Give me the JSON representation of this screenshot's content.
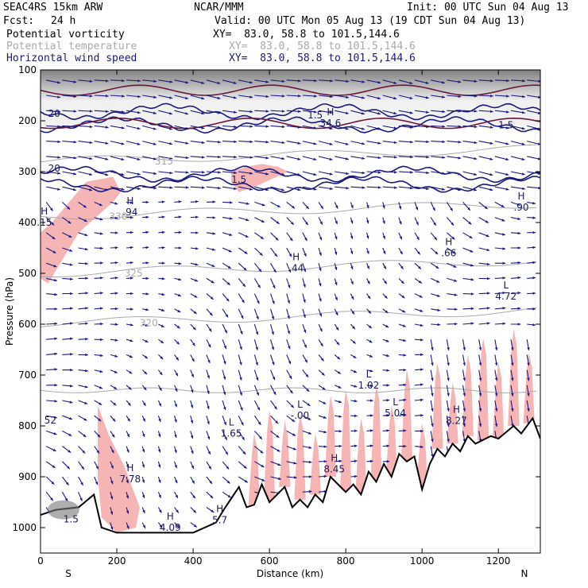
{
  "header": {
    "model": "SEAC4RS 15km ARW",
    "org": "NCAR/MMM",
    "init": "Init: 00 UTC Sun 04 Aug 13",
    "fcst_label": "Fcst:",
    "fcst_value": "24 h",
    "valid": "Valid: 00 UTC Mon 05 Aug 13 (19 CDT Sun 04 Aug 13)",
    "fields": [
      {
        "name": "Potential vorticity",
        "xy": "XY=  83.0, 58.8 to 101.5,144.6",
        "color": "#000000"
      },
      {
        "name": "Potential temperature",
        "xy": "XY=  83.0, 58.8 to 101.5,144.6",
        "color": "#aaaaaa"
      },
      {
        "name": "Horizontal wind speed",
        "xy": "XY=  83.0, 58.8 to 101.5,144.6",
        "color": "#1a1a7a"
      }
    ]
  },
  "chart_data": {
    "type": "cross-section",
    "xlabel": "Distance (km)",
    "ylabel": "Pressure (hPa)",
    "xlim": [
      0,
      1310
    ],
    "ylim": [
      1050,
      100
    ],
    "x_ticks": [
      "0",
      "200",
      "400",
      "600",
      "800",
      "1000",
      "1200"
    ],
    "y_ticks": [
      "100",
      "200",
      "300",
      "400",
      "500",
      "600",
      "700",
      "800",
      "900",
      "1000"
    ],
    "x_end_labels": {
      "left": "S",
      "right": "N"
    },
    "terrain_profile": [
      [
        0,
        975
      ],
      [
        40,
        965
      ],
      [
        100,
        960
      ],
      [
        140,
        935
      ],
      [
        160,
        1000
      ],
      [
        200,
        1010
      ],
      [
        300,
        1010
      ],
      [
        400,
        1010
      ],
      [
        460,
        990
      ],
      [
        480,
        965
      ],
      [
        520,
        920
      ],
      [
        540,
        960
      ],
      [
        560,
        955
      ],
      [
        580,
        915
      ],
      [
        600,
        950
      ],
      [
        640,
        920
      ],
      [
        660,
        960
      ],
      [
        680,
        945
      ],
      [
        700,
        960
      ],
      [
        720,
        935
      ],
      [
        740,
        950
      ],
      [
        760,
        900
      ],
      [
        800,
        930
      ],
      [
        820,
        915
      ],
      [
        840,
        935
      ],
      [
        860,
        890
      ],
      [
        880,
        910
      ],
      [
        900,
        875
      ],
      [
        920,
        900
      ],
      [
        940,
        855
      ],
      [
        960,
        870
      ],
      [
        980,
        860
      ],
      [
        1000,
        925
      ],
      [
        1020,
        875
      ],
      [
        1040,
        845
      ],
      [
        1060,
        860
      ],
      [
        1080,
        835
      ],
      [
        1100,
        850
      ],
      [
        1120,
        820
      ],
      [
        1140,
        835
      ],
      [
        1180,
        820
      ],
      [
        1200,
        825
      ],
      [
        1240,
        800
      ],
      [
        1260,
        815
      ],
      [
        1290,
        785
      ],
      [
        1310,
        825
      ]
    ],
    "theta_contours": [
      {
        "label": "330",
        "pressure_hpa": 388
      },
      {
        "label": "325",
        "pressure_hpa": 500
      },
      {
        "label": "320",
        "pressure_hpa": 598
      },
      {
        "label": "315",
        "pressure_hpa": 280
      }
    ],
    "wind_speed_contours": [
      {
        "label": "30",
        "pressure_hpa": 182
      },
      {
        "label": "25",
        "pressure_hpa": 208
      },
      {
        "label": "20",
        "pressure_hpa": 305
      },
      {
        "label": "15",
        "pressure_hpa": 325
      }
    ],
    "extrema_labels": [
      {
        "type": "H",
        "value": ".94",
        "x_km": 235,
        "p_hpa": 380
      },
      {
        "type": "H",
        "value": ".15",
        "x_km": 10,
        "p_hpa": 400
      },
      {
        "type": "H",
        "value": ".44",
        "x_km": 670,
        "p_hpa": 490
      },
      {
        "type": "H",
        "value": ".66",
        "x_km": 1070,
        "p_hpa": 460
      },
      {
        "type": "H",
        "value": ".90",
        "x_km": 1260,
        "p_hpa": 370
      },
      {
        "type": "H",
        "value": "34.6",
        "x_km": 760,
        "p_hpa": 205
      },
      {
        "type": "L",
        "value": "4.72",
        "x_km": 1220,
        "p_hpa": 545
      },
      {
        "type": "L",
        "value": "1.02",
        "x_km": 860,
        "p_hpa": 720
      },
      {
        "type": "L",
        "value": "-.00",
        "x_km": 680,
        "p_hpa": 780
      },
      {
        "type": "L",
        "value": "5.04",
        "x_km": 930,
        "p_hpa": 775
      },
      {
        "type": "L",
        "value": "1.65",
        "x_km": 500,
        "p_hpa": 815
      },
      {
        "type": "H",
        "value": "8.27",
        "x_km": 1090,
        "p_hpa": 790
      },
      {
        "type": "H",
        "value": "8.45",
        "x_km": 770,
        "p_hpa": 885
      },
      {
        "type": "H",
        "value": "7.78",
        "x_km": 235,
        "p_hpa": 905
      },
      {
        "type": "H",
        "value": "5.7",
        "x_km": 470,
        "p_hpa": 985
      },
      {
        "type": "H",
        "value": "4.09",
        "x_km": 340,
        "p_hpa": 1000
      }
    ],
    "misc_labels": [
      {
        "text": "20",
        "x_km": 20,
        "p_hpa": 192
      },
      {
        "text": "20",
        "x_km": 20,
        "p_hpa": 300
      },
      {
        "text": "1.5",
        "x_km": 700,
        "p_hpa": 195
      },
      {
        "text": "1.5",
        "x_km": 1200,
        "p_hpa": 215
      },
      {
        "text": "1.5",
        "x_km": 500,
        "p_hpa": 322
      },
      {
        "text": "52",
        "x_km": 10,
        "p_hpa": 795
      },
      {
        "text": "1.5",
        "x_km": 60,
        "p_hpa": 990
      }
    ],
    "pv_high_regions": [
      {
        "x_km": [
          0,
          30,
          120,
          190,
          210,
          190,
          100,
          20,
          0
        ],
        "p_hpa": [
          420,
          400,
          320,
          310,
          340,
          360,
          420,
          520,
          510
        ]
      },
      {
        "x_km": [
          500,
          540,
          580,
          620,
          650,
          620,
          560,
          520,
          500
        ],
        "p_hpa": [
          300,
          290,
          285,
          290,
          300,
          310,
          330,
          340,
          320
        ]
      },
      {
        "x_km": [
          150,
          180,
          220,
          260,
          250,
          200,
          160,
          150
        ],
        "p_hpa": [
          760,
          820,
          880,
          960,
          1000,
          1010,
          980,
          900
        ]
      }
    ],
    "colors": {
      "pv_fill": "#f5b5b5",
      "wind_arrow": "#1a1a80",
      "theta_line": "#aaaaaa",
      "wind_contour": "#1a1a80",
      "pv_contour": "#6a1a3a"
    }
  }
}
